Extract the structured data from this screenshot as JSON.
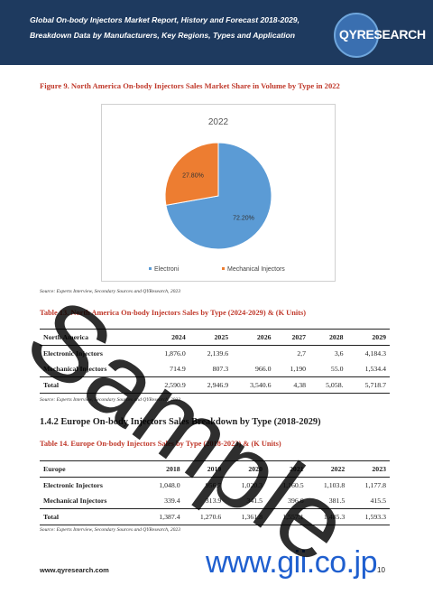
{
  "header": {
    "title": "Global On-body Injectors Market Report, History and Forecast 2018-2029, Breakdown Data by Manufacturers, Key Regions, Types and Application",
    "logo_text": "QYRESEARCH"
  },
  "figure9": {
    "caption": "Figure 9.   North America On-body Injectors Sales Market Share in Volume by Type in 2022",
    "source": "Source: Experts Interview, Secondary Sources and QYResearch, 2023"
  },
  "chart_data": {
    "type": "pie",
    "title": "2022",
    "slices": [
      {
        "label": "Electronic Injectors",
        "value": 72.2,
        "display": "72.20%",
        "color": "#5b9bd5"
      },
      {
        "label": "Mechanical Injectors",
        "value": 27.8,
        "display": "27.80%",
        "color": "#ed7d31"
      }
    ],
    "legend_visible": [
      "Electroni",
      "Mechanical Injectors"
    ],
    "legend_position": "bottom"
  },
  "table13": {
    "caption": "Table 13.   North America On-body Injectors Sales by Type (2024-2029) & (K Units)",
    "headers": [
      "North America",
      "2024",
      "2025",
      "2026",
      "2027",
      "2028",
      "2029"
    ],
    "rows": [
      [
        "Electronic Injectors",
        "1,876.0",
        "2,139.6",
        "",
        "2,7",
        "3,6",
        "4,184.3"
      ],
      [
        "Mechanical Injectors",
        "714.9",
        "807.3",
        "966.0",
        "1,190",
        "55.0",
        "1,534.4"
      ]
    ],
    "total": [
      "Total",
      "2,590.9",
      "2,946.9",
      "3,540.6",
      "4,38",
      "5,058.",
      "5,718.7"
    ],
    "source": "Source: Experts Interview, Secondary Sources and QYResearch, 2023"
  },
  "section": {
    "title": "1.4.2   Europe On-body Injectors Sales Breakdown by Type (2018-2029)"
  },
  "table14": {
    "caption": "Table 14.   Europe On-body Injectors Sales by Type (2018-2023) & (K Units)",
    "headers": [
      "Europe",
      "2018",
      "2019",
      "2020",
      "2021",
      "2022",
      "2023"
    ],
    "rows": [
      [
        "Electronic Injectors",
        "1,048.0",
        "956.7",
        "1,020.3",
        "1,160.5",
        "1,103.8",
        "1,177.8"
      ],
      [
        "Mechanical Injectors",
        "339.4",
        "313.9",
        "341.5",
        "396.6",
        "381.5",
        "415.5"
      ]
    ],
    "total": [
      "Total",
      "1,387.4",
      "1,270.6",
      "1,361.8",
      "1,557.1",
      "1,485.3",
      "1,593.3"
    ],
    "source": "Source: Experts Interview, Secondary Sources and QYResearch, 2023"
  },
  "footer": {
    "url": "www.qyresearch.com",
    "page": "10",
    "gii": "www.gii.co.jp"
  },
  "watermark": "Sample"
}
